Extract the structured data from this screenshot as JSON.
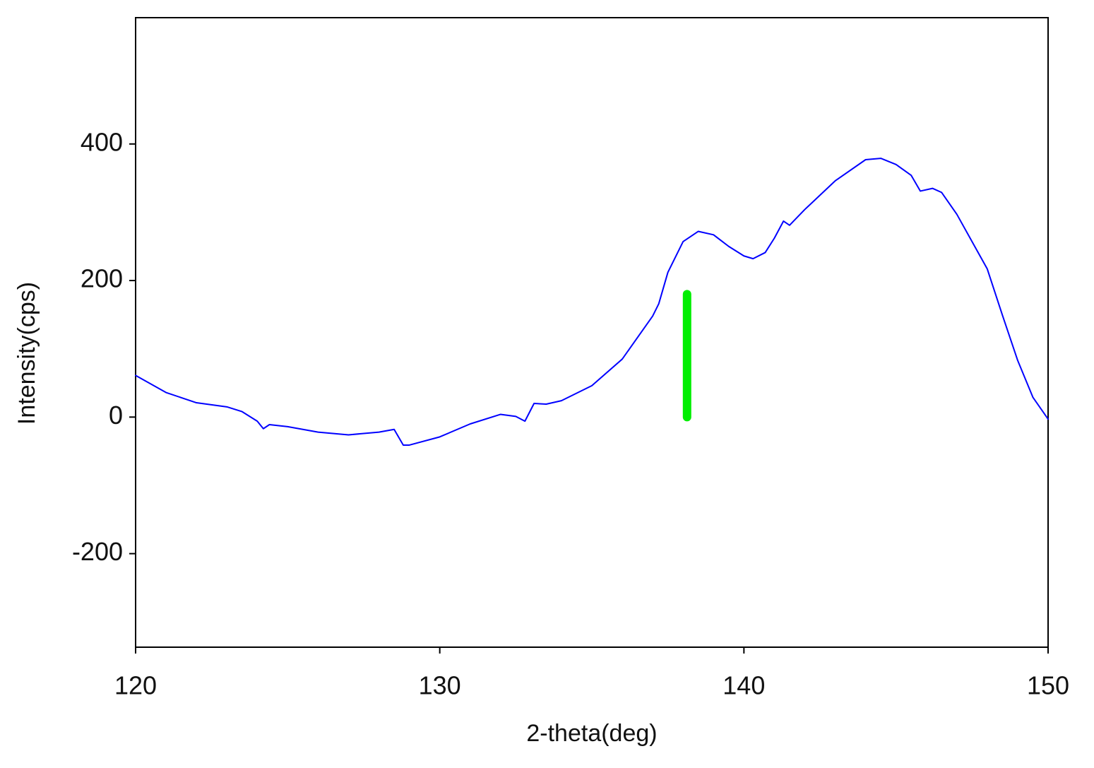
{
  "chart_data": {
    "type": "line",
    "x_label": "2-theta(deg)",
    "y_label": "Intensity(cps)",
    "xlim": [
      120,
      150
    ],
    "xticks": [
      120,
      130,
      140,
      150
    ],
    "ylim": [
      -337,
      585
    ],
    "yticks": [
      -200,
      0,
      200,
      400
    ],
    "grid": false,
    "series": [
      {
        "color": "#0000ff",
        "line_width": 2,
        "x": [
          120,
          121,
          122,
          123,
          123.5,
          124,
          124.2,
          124.4,
          125,
          126,
          127,
          128,
          128.5,
          128.8,
          129,
          130,
          131,
          132,
          132.5,
          132.8,
          133.1,
          133.5,
          134,
          135,
          136,
          137,
          137.2,
          137.5,
          138,
          138.5,
          139,
          139.5,
          140,
          140.3,
          140.7,
          141,
          141.3,
          141.5,
          142,
          143,
          144,
          144.5,
          145,
          145.5,
          145.8,
          146.2,
          146.5,
          147,
          148,
          148.5,
          149,
          149.5,
          150
        ],
        "values": [
          61,
          36,
          21,
          15,
          8,
          -6,
          -17,
          -11,
          -14,
          -22,
          -26,
          -22,
          -18,
          -41,
          -41,
          -29,
          -10,
          4,
          1,
          -6,
          20,
          19,
          24,
          46,
          85,
          148,
          166,
          212,
          257,
          272,
          267,
          250,
          236,
          232,
          241,
          262,
          287,
          281,
          304,
          346,
          377,
          379,
          370,
          354,
          331,
          335,
          329,
          297,
          217,
          149,
          83,
          29,
          -3
        ]
      },
      {
        "color": "#00ee00",
        "line_width": 12,
        "x": [
          138.13,
          138.13
        ],
        "values": [
          0,
          180
        ]
      }
    ]
  }
}
